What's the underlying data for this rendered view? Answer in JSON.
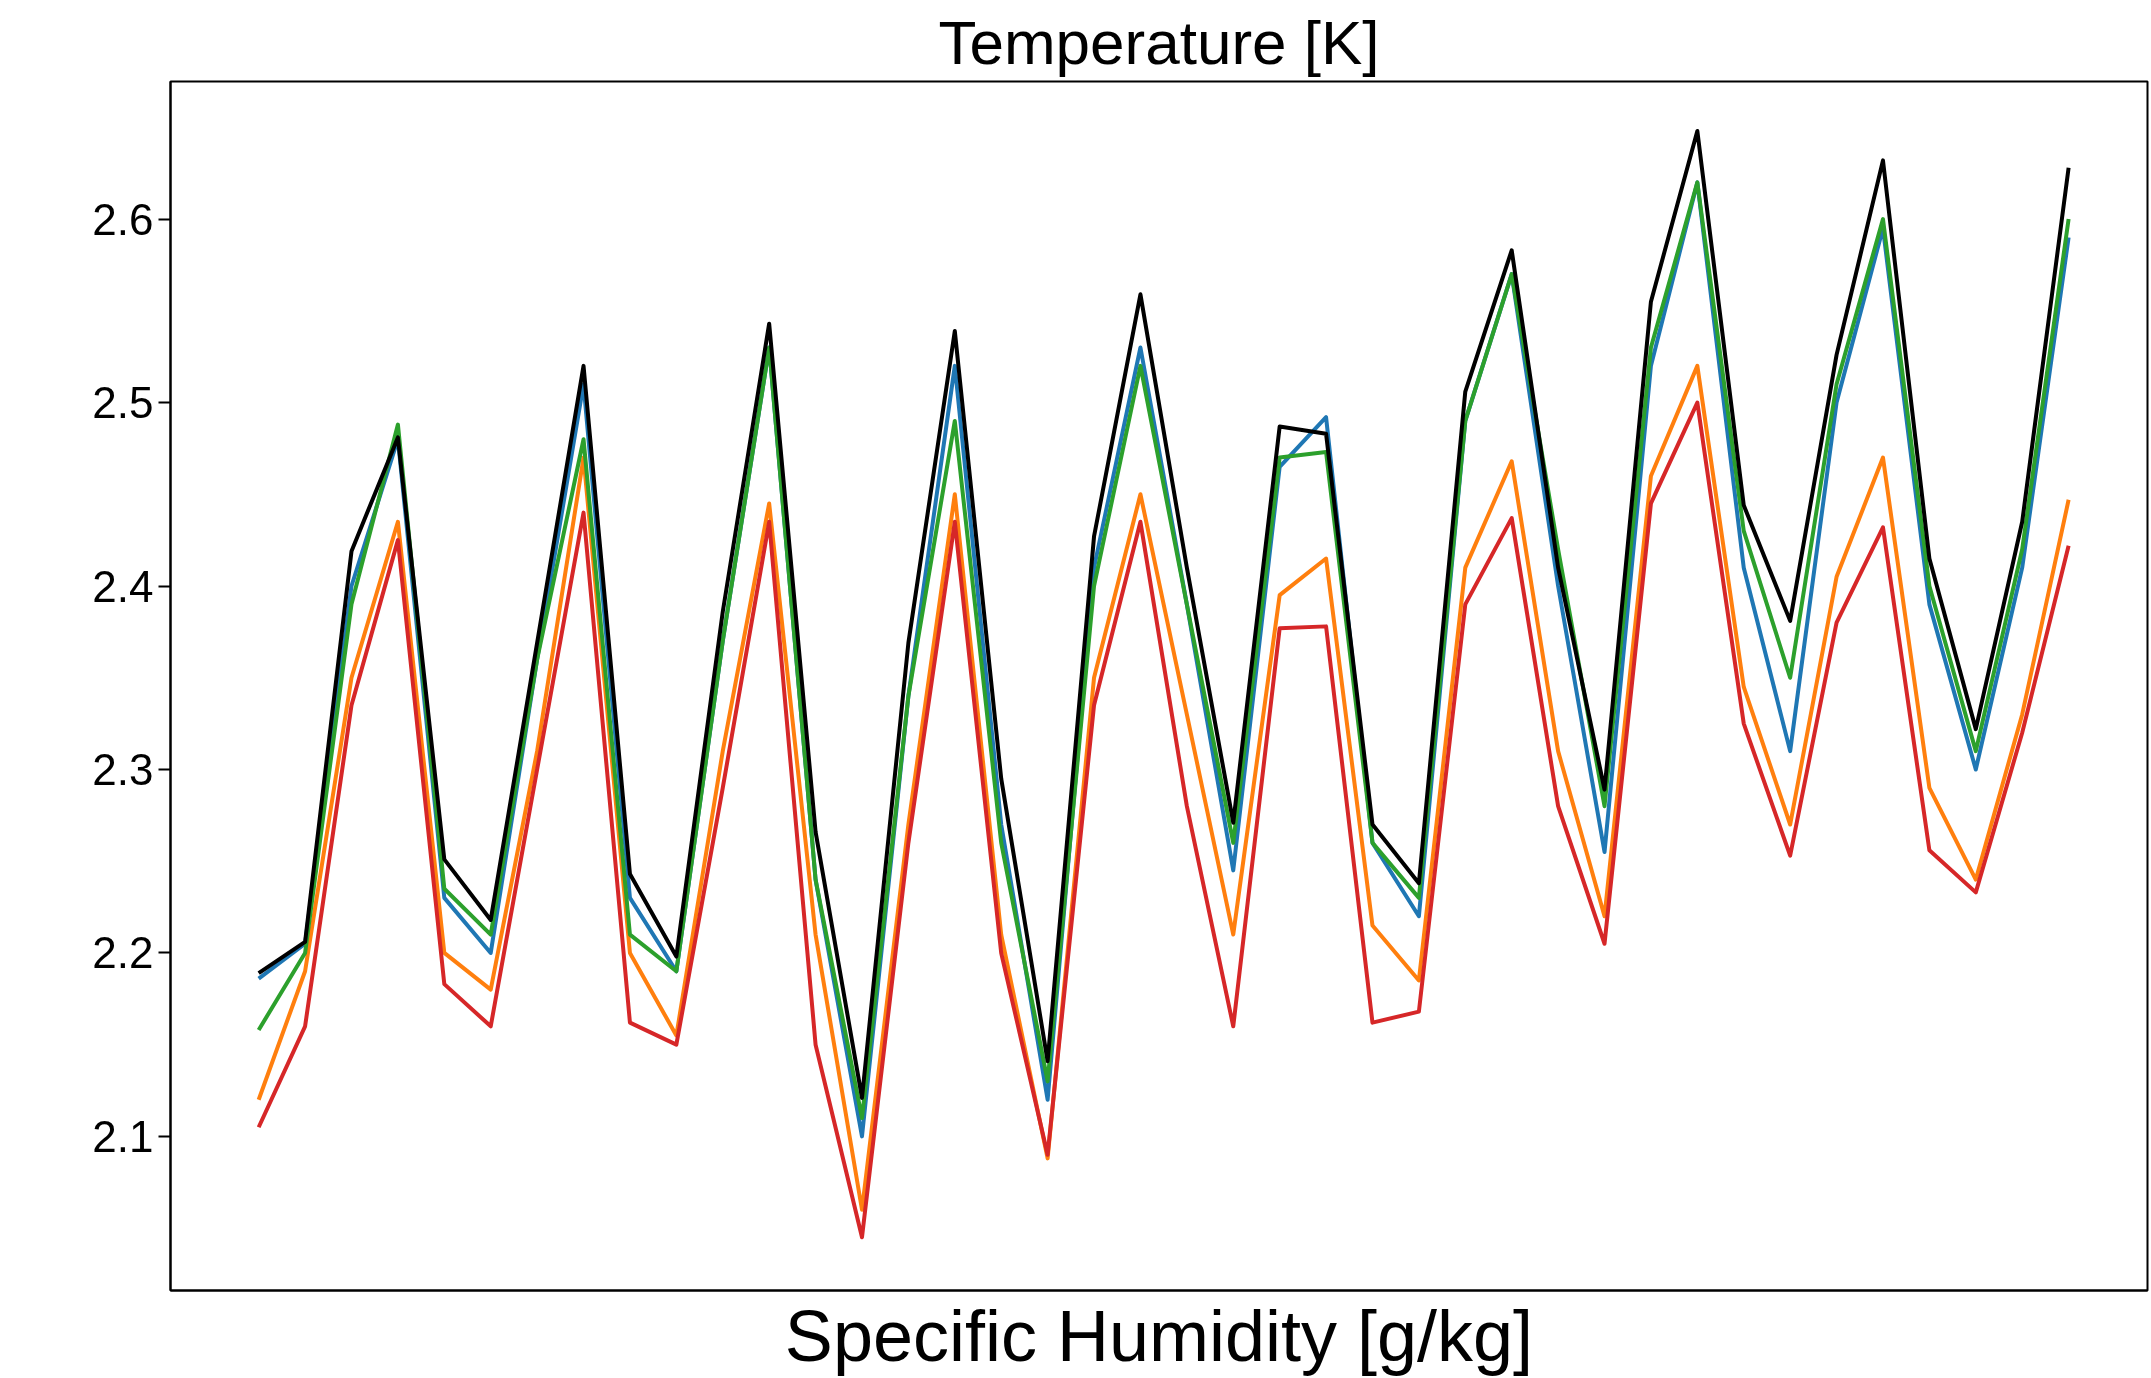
{
  "chart_data": {
    "type": "line",
    "title": "Temperature [K]",
    "xlabel": "Specific Humidity [g/kg]",
    "categories": [
      null,
      null,
      null,
      null,
      null,
      null,
      null,
      null,
      null,
      null,
      null,
      null,
      null,
      null,
      null,
      null,
      null,
      null,
      null,
      null,
      null,
      null,
      null,
      null,
      null,
      null,
      null,
      null,
      null,
      null,
      null,
      null,
      null,
      null,
      null,
      null,
      null,
      null,
      null,
      null
    ],
    "series": [
      {
        "color": "#1f77b4",
        "values": [
          2.186,
          2.205,
          2.4,
          2.48,
          2.23,
          2.2,
          2.36,
          2.51,
          2.23,
          2.19,
          2.37,
          2.53,
          2.24,
          2.1,
          2.34,
          2.52,
          2.27,
          2.12,
          2.41,
          2.53,
          2.39,
          2.245,
          2.465,
          2.492,
          2.26,
          2.22,
          2.49,
          2.57,
          2.4,
          2.255,
          2.52,
          2.62,
          2.41,
          2.31,
          2.5,
          2.595,
          2.39,
          2.3,
          2.41,
          2.59
        ]
      },
      {
        "color": "#ff7f0e",
        "values": [
          2.12,
          2.19,
          2.35,
          2.435,
          2.2,
          2.18,
          2.31,
          2.47,
          2.2,
          2.155,
          2.31,
          2.445,
          2.21,
          2.06,
          2.27,
          2.45,
          2.21,
          2.088,
          2.35,
          2.45,
          2.33,
          2.21,
          2.395,
          2.415,
          2.215,
          2.185,
          2.41,
          2.468,
          2.31,
          2.22,
          2.46,
          2.52,
          2.345,
          2.27,
          2.405,
          2.47,
          2.29,
          2.24,
          2.33,
          2.447
        ]
      },
      {
        "color": "#2ca02c",
        "values": [
          2.158,
          2.2,
          2.39,
          2.488,
          2.235,
          2.21,
          2.36,
          2.48,
          2.21,
          2.19,
          2.37,
          2.53,
          2.24,
          2.11,
          2.34,
          2.49,
          2.26,
          2.13,
          2.4,
          2.52,
          2.39,
          2.26,
          2.47,
          2.473,
          2.26,
          2.23,
          2.49,
          2.57,
          2.42,
          2.28,
          2.53,
          2.62,
          2.43,
          2.35,
          2.51,
          2.6,
          2.4,
          2.31,
          2.42,
          2.6
        ]
      },
      {
        "color": "#d62728",
        "values": [
          2.105,
          2.16,
          2.335,
          2.425,
          2.183,
          2.16,
          2.3,
          2.44,
          2.162,
          2.15,
          2.29,
          2.435,
          2.15,
          2.045,
          2.26,
          2.435,
          2.2,
          2.09,
          2.335,
          2.435,
          2.28,
          2.16,
          2.377,
          2.378,
          2.162,
          2.168,
          2.39,
          2.437,
          2.28,
          2.205,
          2.445,
          2.5,
          2.325,
          2.253,
          2.38,
          2.432,
          2.256,
          2.233,
          2.32,
          2.422
        ]
      },
      {
        "color": "#000000",
        "values": [
          2.189,
          2.206,
          2.419,
          2.481,
          2.251,
          2.218,
          2.369,
          2.52,
          2.243,
          2.198,
          2.386,
          2.543,
          2.266,
          2.121,
          2.369,
          2.539,
          2.295,
          2.141,
          2.427,
          2.559,
          2.41,
          2.271,
          2.487,
          2.483,
          2.27,
          2.238,
          2.506,
          2.583,
          2.41,
          2.289,
          2.555,
          2.648,
          2.444,
          2.381,
          2.526,
          2.632,
          2.415,
          2.322,
          2.435,
          2.628
        ]
      }
    ],
    "ylim": [
      2.016,
      2.675
    ],
    "yticks": [
      2.1,
      2.2,
      2.3,
      2.4,
      2.5,
      2.6
    ],
    "tick_labels": "y",
    "grid": false,
    "marker": "none",
    "line_style": "solid"
  }
}
